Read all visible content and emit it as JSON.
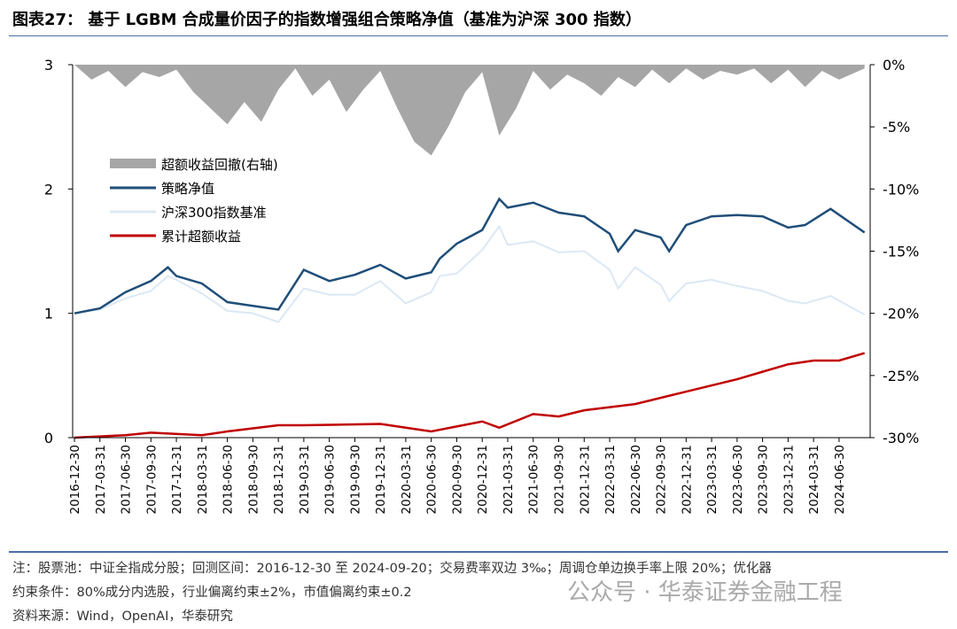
{
  "title": "图表27： 基于 LGBM 合成量价因子的指数增强组合策略净值（基准为沪深 300 指数）",
  "notes": [
    "注：股票池：中证全指成分股；回测区间：2016-12-30 至 2024-09-20；交易费率双边 3‰；周调仓单边换手率上限 20%；优化器",
    "约束条件：80%成分内选股，行业偏离约束±2%，市值偏离约束±0.2",
    "资料来源：Wind，OpenAI，华泰研究"
  ],
  "watermark": "公众号 · 华泰证券金融工程",
  "chart_data": {
    "type": "line",
    "x_ticks": [
      "2016-12-30",
      "2017-03-31",
      "2017-06-30",
      "2017-09-30",
      "2017-12-31",
      "2018-03-31",
      "2018-06-30",
      "2018-09-30",
      "2018-12-31",
      "2019-03-31",
      "2019-06-30",
      "2019-09-30",
      "2019-12-31",
      "2020-03-31",
      "2020-06-30",
      "2020-09-30",
      "2020-12-31",
      "2021-03-31",
      "2021-06-30",
      "2021-09-30",
      "2021-12-31",
      "2022-03-31",
      "2022-06-30",
      "2022-09-30",
      "2022-12-31",
      "2023-03-31",
      "2023-06-30",
      "2023-09-30",
      "2023-12-31",
      "2024-03-31",
      "2024-06-30"
    ],
    "y_left": {
      "range": [
        0,
        3
      ],
      "ticks": [
        "0",
        "1",
        "2",
        "3"
      ]
    },
    "y_right": {
      "range": [
        -30,
        0
      ],
      "ticks": [
        "0%",
        "-5%",
        "-10%",
        "-15%",
        "-20%",
        "-25%",
        "-30%"
      ]
    },
    "legend_position": "upper-left",
    "series": [
      {
        "name": "超额收益回撤(右轴)",
        "type": "area",
        "axis": "right",
        "color": "#a6a6a6",
        "x": [
          "2016-12",
          "2017-02",
          "2017-04",
          "2017-06",
          "2017-08",
          "2017-10",
          "2017-12",
          "2018-02",
          "2018-04",
          "2018-06",
          "2018-08",
          "2018-10",
          "2018-12",
          "2019-02",
          "2019-04",
          "2019-06",
          "2019-08",
          "2019-10",
          "2019-12",
          "2020-02",
          "2020-04",
          "2020-06",
          "2020-08",
          "2020-10",
          "2020-12",
          "2021-02",
          "2021-04",
          "2021-06",
          "2021-08",
          "2021-10",
          "2021-12",
          "2022-02",
          "2022-04",
          "2022-06",
          "2022-08",
          "2022-10",
          "2022-12",
          "2023-02",
          "2023-04",
          "2023-06",
          "2023-08",
          "2023-10",
          "2023-12",
          "2024-02",
          "2024-04",
          "2024-06",
          "2024-09"
        ],
        "values": [
          0,
          -1.2,
          -0.5,
          -1.8,
          -0.6,
          -1.0,
          -0.4,
          -2.2,
          -3.5,
          -4.8,
          -3.0,
          -4.6,
          -2.0,
          -0.3,
          -2.5,
          -1.2,
          -3.8,
          -2.0,
          -0.5,
          -3.5,
          -6.2,
          -7.3,
          -5.0,
          -2.2,
          -0.6,
          -5.7,
          -3.5,
          -0.5,
          -2.0,
          -0.8,
          -1.5,
          -2.5,
          -1.0,
          -1.8,
          -0.4,
          -1.5,
          -0.3,
          -1.2,
          -0.5,
          -0.8,
          -0.3,
          -1.5,
          -0.4,
          -1.8,
          -0.5,
          -1.2,
          -0.3
        ]
      },
      {
        "name": "策略净值",
        "axis": "left",
        "color": "#1f4e79",
        "x": [
          "2016-12",
          "2017-03",
          "2017-06",
          "2017-09",
          "2017-11",
          "2017-12",
          "2018-03",
          "2018-06",
          "2018-09",
          "2018-12",
          "2019-03",
          "2019-06",
          "2019-09",
          "2019-12",
          "2020-03",
          "2020-06",
          "2020-07",
          "2020-09",
          "2020-12",
          "2021-02",
          "2021-03",
          "2021-06",
          "2021-09",
          "2021-12",
          "2022-03",
          "2022-04",
          "2022-06",
          "2022-09",
          "2022-10",
          "2022-12",
          "2023-03",
          "2023-06",
          "2023-09",
          "2023-12",
          "2024-02",
          "2024-05",
          "2024-09"
        ],
        "values": [
          1.0,
          1.04,
          1.17,
          1.26,
          1.37,
          1.3,
          1.24,
          1.09,
          1.06,
          1.03,
          1.35,
          1.26,
          1.31,
          1.39,
          1.28,
          1.33,
          1.44,
          1.56,
          1.67,
          1.92,
          1.85,
          1.89,
          1.81,
          1.78,
          1.64,
          1.5,
          1.67,
          1.61,
          1.5,
          1.71,
          1.78,
          1.79,
          1.78,
          1.69,
          1.71,
          1.84,
          1.65
        ]
      },
      {
        "name": "沪深300指数基准",
        "axis": "left",
        "color": "#dce8f5",
        "x": [
          "2016-12",
          "2017-03",
          "2017-06",
          "2017-09",
          "2017-11",
          "2017-12",
          "2018-03",
          "2018-06",
          "2018-09",
          "2018-12",
          "2019-03",
          "2019-06",
          "2019-09",
          "2019-12",
          "2020-03",
          "2020-06",
          "2020-07",
          "2020-09",
          "2020-12",
          "2021-02",
          "2021-03",
          "2021-06",
          "2021-09",
          "2021-12",
          "2022-03",
          "2022-04",
          "2022-06",
          "2022-09",
          "2022-10",
          "2022-12",
          "2023-03",
          "2023-06",
          "2023-09",
          "2023-12",
          "2024-02",
          "2024-05",
          "2024-09"
        ],
        "values": [
          1.0,
          1.03,
          1.12,
          1.18,
          1.3,
          1.27,
          1.16,
          1.02,
          1.0,
          0.93,
          1.2,
          1.15,
          1.15,
          1.26,
          1.08,
          1.17,
          1.3,
          1.32,
          1.51,
          1.7,
          1.55,
          1.58,
          1.49,
          1.5,
          1.35,
          1.2,
          1.37,
          1.23,
          1.1,
          1.24,
          1.27,
          1.22,
          1.18,
          1.1,
          1.08,
          1.14,
          0.99
        ]
      },
      {
        "name": "累计超额收益",
        "axis": "left",
        "color": "#c00000",
        "x": [
          "2016-12",
          "2017-06",
          "2017-09",
          "2018-03",
          "2018-06",
          "2018-12",
          "2019-03",
          "2019-12",
          "2020-06",
          "2020-12",
          "2021-02",
          "2021-06",
          "2021-09",
          "2021-12",
          "2022-06",
          "2022-12",
          "2023-06",
          "2023-09",
          "2023-12",
          "2024-03",
          "2024-06",
          "2024-09"
        ],
        "values": [
          0,
          0.02,
          0.04,
          0.02,
          0.05,
          0.1,
          0.1,
          0.11,
          0.05,
          0.13,
          0.08,
          0.19,
          0.17,
          0.22,
          0.27,
          0.37,
          0.47,
          0.53,
          0.59,
          0.62,
          0.62,
          0.68
        ]
      }
    ]
  }
}
